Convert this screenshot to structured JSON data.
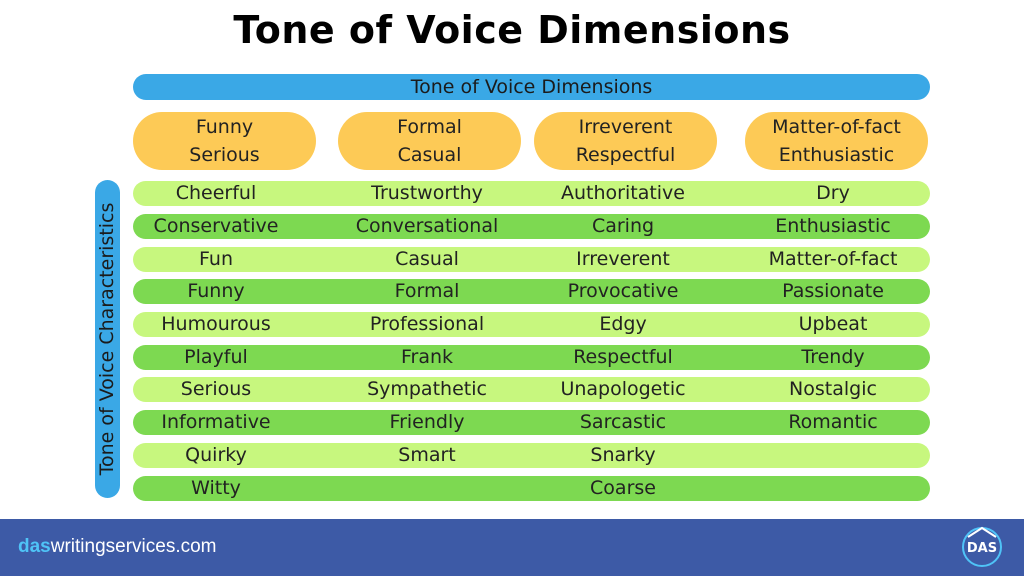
{
  "page": {
    "title": "Tone of Voice Dimensions",
    "dimensions_bar": "Tone of Voice Dimensions",
    "side_label": "Tone of Voice Characteristics"
  },
  "dimensions": [
    {
      "line1": "Funny",
      "line2": "Serious"
    },
    {
      "line1": "Formal",
      "line2": "Casual"
    },
    {
      "line1": "Irreverent",
      "line2": "Respectful"
    },
    {
      "line1": "Matter-of-fact",
      "line2": "Enthusiastic"
    }
  ],
  "rows": [
    [
      "Cheerful",
      "Trustworthy",
      "Authoritative",
      "Dry"
    ],
    [
      "Conservative",
      "Conversational",
      "Caring",
      "Enthusiastic"
    ],
    [
      "Fun",
      "Casual",
      "Irreverent",
      "Matter-of-fact"
    ],
    [
      "Funny",
      "Formal",
      "Provocative",
      "Passionate"
    ],
    [
      "Humourous",
      "Professional",
      "Edgy",
      "Upbeat"
    ],
    [
      "Playful",
      "Frank",
      "Respectful",
      "Trendy"
    ],
    [
      "Serious",
      "Sympathetic",
      "Unapologetic",
      "Nostalgic"
    ],
    [
      "Informative",
      "Friendly",
      "Sarcastic",
      "Romantic"
    ],
    [
      "Quirky",
      "Smart",
      "Snarky",
      ""
    ],
    [
      "Witty",
      "",
      "Coarse",
      ""
    ]
  ],
  "footer": {
    "brand_prefix": "das",
    "brand_rest": "writingservices.com",
    "logo_text": "DAS"
  },
  "colors": {
    "blue_bar": "#3aa8e6",
    "dimension_pill": "#fdca56",
    "row_light": "#c7f77e",
    "row_dark": "#7dd951",
    "footer": "#3d5aa6"
  }
}
